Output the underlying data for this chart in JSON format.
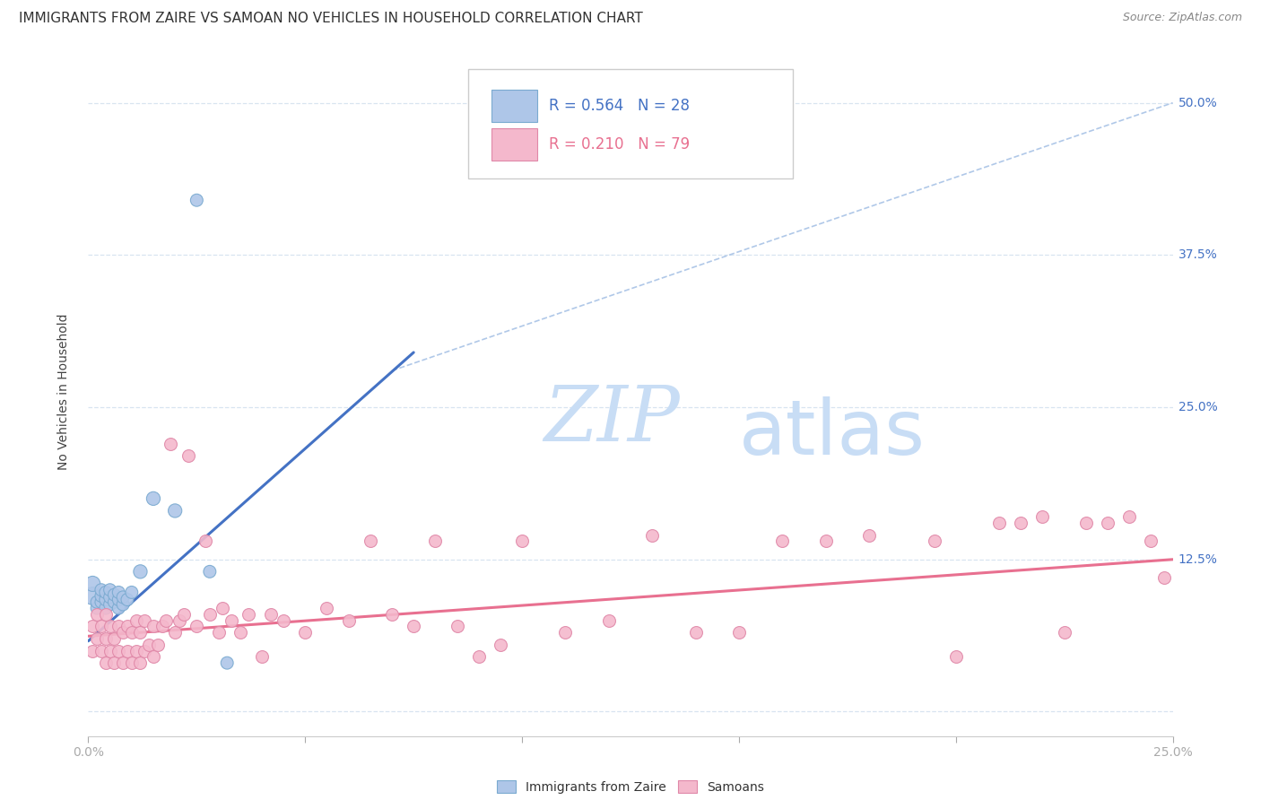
{
  "title": "IMMIGRANTS FROM ZAIRE VS SAMOAN NO VEHICLES IN HOUSEHOLD CORRELATION CHART",
  "source": "Source: ZipAtlas.com",
  "ylabel": "No Vehicles in Household",
  "yticks": [
    0.0,
    0.125,
    0.25,
    0.375,
    0.5
  ],
  "ytick_labels": [
    "",
    "12.5%",
    "25.0%",
    "37.5%",
    "50.0%"
  ],
  "xmin": 0.0,
  "xmax": 0.25,
  "ymin": -0.02,
  "ymax": 0.545,
  "legend_r1": "R = 0.564",
  "legend_n1": "N = 28",
  "legend_r2": "R = 0.210",
  "legend_n2": "N = 79",
  "legend_label1": "Immigrants from Zaire",
  "legend_label2": "Samoans",
  "blue_color": "#aec6e8",
  "blue_edge_color": "#7aaad0",
  "pink_color": "#f4b8cc",
  "pink_edge_color": "#e088a8",
  "line_blue_color": "#4472c4",
  "line_pink_color": "#e87090",
  "dashed_line_color": "#b0c8e8",
  "grid_color": "#d8e4f0",
  "background_color": "#ffffff",
  "watermark_zip_color": "#c8ddf5",
  "watermark_atlas_color": "#c8ddf5",
  "title_fontsize": 11,
  "source_fontsize": 9,
  "legend_fontsize": 12,
  "tick_fontsize": 10,
  "blue_scatter_x": [
    0.001,
    0.001,
    0.002,
    0.002,
    0.003,
    0.003,
    0.003,
    0.004,
    0.004,
    0.004,
    0.005,
    0.005,
    0.005,
    0.006,
    0.006,
    0.007,
    0.007,
    0.007,
    0.008,
    0.008,
    0.009,
    0.01,
    0.012,
    0.015,
    0.02,
    0.025,
    0.028,
    0.032
  ],
  "blue_scatter_y": [
    0.095,
    0.105,
    0.085,
    0.09,
    0.09,
    0.095,
    0.1,
    0.085,
    0.092,
    0.098,
    0.088,
    0.094,
    0.1,
    0.09,
    0.096,
    0.085,
    0.092,
    0.098,
    0.088,
    0.094,
    0.092,
    0.098,
    0.115,
    0.175,
    0.165,
    0.42,
    0.115,
    0.04
  ],
  "blue_scatter_sizes": [
    200,
    150,
    100,
    100,
    100,
    100,
    100,
    100,
    100,
    100,
    100,
    100,
    100,
    100,
    100,
    100,
    100,
    100,
    100,
    100,
    100,
    100,
    120,
    120,
    120,
    100,
    100,
    100
  ],
  "pink_scatter_x": [
    0.001,
    0.001,
    0.002,
    0.002,
    0.003,
    0.003,
    0.004,
    0.004,
    0.004,
    0.005,
    0.005,
    0.006,
    0.006,
    0.007,
    0.007,
    0.008,
    0.008,
    0.009,
    0.009,
    0.01,
    0.01,
    0.011,
    0.011,
    0.012,
    0.012,
    0.013,
    0.013,
    0.014,
    0.015,
    0.015,
    0.016,
    0.017,
    0.018,
    0.019,
    0.02,
    0.021,
    0.022,
    0.023,
    0.025,
    0.027,
    0.028,
    0.03,
    0.031,
    0.033,
    0.035,
    0.037,
    0.04,
    0.042,
    0.045,
    0.05,
    0.055,
    0.06,
    0.065,
    0.07,
    0.075,
    0.08,
    0.085,
    0.09,
    0.095,
    0.1,
    0.11,
    0.12,
    0.13,
    0.14,
    0.15,
    0.16,
    0.17,
    0.18,
    0.195,
    0.2,
    0.21,
    0.215,
    0.22,
    0.225,
    0.23,
    0.235,
    0.24,
    0.245,
    0.248
  ],
  "pink_scatter_y": [
    0.05,
    0.07,
    0.06,
    0.08,
    0.05,
    0.07,
    0.04,
    0.06,
    0.08,
    0.05,
    0.07,
    0.04,
    0.06,
    0.05,
    0.07,
    0.04,
    0.065,
    0.05,
    0.07,
    0.04,
    0.065,
    0.05,
    0.075,
    0.04,
    0.065,
    0.05,
    0.075,
    0.055,
    0.045,
    0.07,
    0.055,
    0.07,
    0.075,
    0.22,
    0.065,
    0.075,
    0.08,
    0.21,
    0.07,
    0.14,
    0.08,
    0.065,
    0.085,
    0.075,
    0.065,
    0.08,
    0.045,
    0.08,
    0.075,
    0.065,
    0.085,
    0.075,
    0.14,
    0.08,
    0.07,
    0.14,
    0.07,
    0.045,
    0.055,
    0.14,
    0.065,
    0.075,
    0.145,
    0.065,
    0.065,
    0.14,
    0.14,
    0.145,
    0.14,
    0.045,
    0.155,
    0.155,
    0.16,
    0.065,
    0.155,
    0.155,
    0.16,
    0.14,
    0.11
  ],
  "blue_line_x": [
    0.0,
    0.075
  ],
  "blue_line_y": [
    0.058,
    0.295
  ],
  "pink_line_x": [
    0.0,
    0.25
  ],
  "pink_line_y": [
    0.062,
    0.125
  ],
  "dashed_line_x": [
    0.07,
    0.25
  ],
  "dashed_line_y": [
    0.28,
    0.5
  ]
}
